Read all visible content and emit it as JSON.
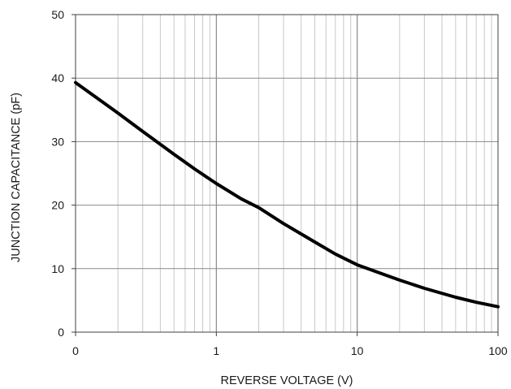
{
  "chart_data": {
    "type": "line",
    "title": "",
    "xlabel": "REVERSE VOLTAGE (V)",
    "ylabel": "JUNCTION CAPACITANCE (pF)",
    "xscale": "log",
    "xlim": [
      0.1,
      100
    ],
    "ylim": [
      0,
      50
    ],
    "grid": true,
    "legend": "none",
    "x_tick_labels": [
      {
        "value": 0.1,
        "label": "0"
      },
      {
        "value": 1,
        "label": "1"
      },
      {
        "value": 10,
        "label": "10"
      },
      {
        "value": 100,
        "label": "100"
      }
    ],
    "y_tick_labels": [
      {
        "value": 0,
        "label": "0"
      },
      {
        "value": 10,
        "label": "10"
      },
      {
        "value": 20,
        "label": "20"
      },
      {
        "value": 30,
        "label": "30"
      },
      {
        "value": 40,
        "label": "40"
      },
      {
        "value": 50,
        "label": "50"
      }
    ],
    "series": [
      {
        "color": "#000000",
        "x": [
          0.1,
          0.15,
          0.2,
          0.3,
          0.5,
          0.7,
          1,
          1.5,
          2,
          3,
          5,
          7,
          10,
          15,
          20,
          30,
          50,
          70,
          100
        ],
        "y": [
          39.3,
          36.5,
          34.5,
          31.6,
          28,
          25.7,
          23.4,
          21,
          19.6,
          17.1,
          14.2,
          12.3,
          10.6,
          9.2,
          8.2,
          6.9,
          5.5,
          4.7,
          4.0
        ]
      }
    ]
  }
}
